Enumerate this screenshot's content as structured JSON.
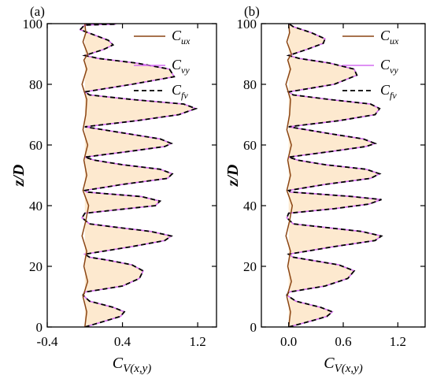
{
  "chart_data": [
    {
      "type": "line",
      "panel_label": "(a)",
      "xlabel": "C",
      "xlabel_sub": "V(x,y)",
      "ylabel": "z/D",
      "xlim": [
        -0.4,
        1.4
      ],
      "ylim": [
        0,
        100
      ],
      "xticks": [
        -0.4,
        0.4,
        1.2
      ],
      "xtick_labels": [
        "-0.4",
        "0.4",
        "1.2"
      ],
      "yticks": [
        0,
        20,
        40,
        60,
        80,
        100
      ],
      "ytick_labels": [
        "0",
        "20",
        "40",
        "60",
        "80",
        "100"
      ],
      "legend": [
        {
          "symbol": "C",
          "sub": "ux",
          "color": "#8b4513",
          "style": "solid"
        },
        {
          "symbol": "C",
          "sub": "vy",
          "color": "#d36df0",
          "style": "solid"
        },
        {
          "symbol": "C",
          "sub": "fv",
          "color": "#000000",
          "style": "dashed"
        }
      ],
      "legend_position": "top-right",
      "fill_color": "#fde9cf",
      "series": [
        {
          "key": "vy",
          "color": "#d36df0",
          "x": [
            0.0,
            0.22,
            0.38,
            0.42,
            0.3,
            0.05,
            -0.02,
            0.0,
            0.4,
            0.58,
            0.62,
            0.5,
            0.25,
            0.05,
            0.0,
            0.5,
            0.85,
            0.92,
            0.7,
            0.3,
            0.05,
            -0.03,
            0.0,
            0.45,
            0.75,
            0.8,
            0.6,
            0.2,
            0.02,
            0.0,
            0.4,
            0.88,
            0.93,
            0.8,
            0.4,
            0.1,
            0.0,
            0.5,
            0.85,
            0.92,
            0.8,
            0.5,
            0.2,
            0.0,
            0.55,
            1.0,
            1.18,
            1.05,
            0.5,
            0.05,
            0.0,
            0.5,
            0.95,
            0.9,
            0.55,
            0.15,
            0.0,
            0.2,
            0.3,
            0.25,
            0.08,
            -0.05,
            -0.02,
            0.0,
            0.18,
            0.32,
            0.33,
            0.25,
            0.1,
            0.0
          ],
          "y": [
            0.0,
            2.0,
            3.5,
            5.0,
            6.5,
            8.5,
            10.5,
            11.5,
            13.5,
            16.0,
            18.5,
            20.5,
            22.0,
            23.0,
            24.0,
            26.5,
            28.5,
            30.0,
            31.5,
            33.0,
            34.0,
            36.0,
            37.5,
            39.0,
            40.0,
            41.5,
            43.0,
            44.0,
            44.5,
            45.0,
            47.0,
            49.0,
            50.5,
            52.0,
            53.5,
            55.0,
            56.0,
            58.0,
            59.5,
            60.5,
            62.0,
            63.5,
            65.0,
            66.0,
            68.0,
            70.0,
            72.0,
            73.5,
            75.0,
            76.5,
            77.5,
            80.0,
            82.5,
            85.0,
            87.0,
            88.5,
            89.5,
            91.5,
            93.0,
            94.5,
            96.5,
            98.0,
            99.0,
            99.5,
            99.7,
            99.8,
            99.9,
            99.95,
            99.98,
            100.0
          ]
        },
        {
          "key": "fv",
          "color": "#000000",
          "x": [
            0.0,
            0.22,
            0.38,
            0.42,
            0.3,
            0.05,
            -0.02,
            0.0,
            0.4,
            0.58,
            0.62,
            0.5,
            0.25,
            0.05,
            0.0,
            0.5,
            0.85,
            0.92,
            0.7,
            0.3,
            0.05,
            -0.03,
            0.0,
            0.45,
            0.75,
            0.8,
            0.6,
            0.2,
            0.02,
            0.0,
            0.4,
            0.88,
            0.93,
            0.8,
            0.4,
            0.1,
            0.0,
            0.5,
            0.85,
            0.92,
            0.8,
            0.5,
            0.2,
            0.0,
            0.55,
            1.0,
            1.18,
            1.05,
            0.5,
            0.05,
            0.0,
            0.5,
            0.95,
            0.9,
            0.55,
            0.15,
            0.0,
            0.2,
            0.3,
            0.25,
            0.08,
            -0.05,
            -0.02,
            0.0,
            0.18,
            0.32,
            0.33,
            0.25,
            0.1,
            0.0
          ],
          "y": [
            0.0,
            2.0,
            3.5,
            5.0,
            6.5,
            8.5,
            10.5,
            11.5,
            13.5,
            16.0,
            18.5,
            20.5,
            22.0,
            23.0,
            24.0,
            26.5,
            28.5,
            30.0,
            31.5,
            33.0,
            34.0,
            36.0,
            37.5,
            39.0,
            40.0,
            41.5,
            43.0,
            44.0,
            44.5,
            45.0,
            47.0,
            49.0,
            50.5,
            52.0,
            53.5,
            55.0,
            56.0,
            58.0,
            59.5,
            60.5,
            62.0,
            63.5,
            65.0,
            66.0,
            68.0,
            70.0,
            72.0,
            73.5,
            75.0,
            76.5,
            77.5,
            80.0,
            82.5,
            85.0,
            87.0,
            88.5,
            89.5,
            91.5,
            93.0,
            94.5,
            96.5,
            98.0,
            99.0,
            99.5,
            99.7,
            99.8,
            99.9,
            99.95,
            99.98,
            100.0
          ]
        },
        {
          "key": "ux",
          "color": "#8b4513",
          "x": [
            0.0,
            0.02,
            -0.02,
            0.03,
            -0.01,
            0.02,
            -0.03,
            0.01,
            0.04,
            -0.02,
            0.02,
            -0.01,
            0.03,
            -0.02,
            0.01,
            0.02,
            -0.03,
            0.02,
            -0.01,
            0.03,
            -0.02,
            0.01,
            0.0
          ],
          "y": [
            0,
            5,
            10,
            15,
            20,
            25,
            30,
            35,
            40,
            45,
            50,
            55,
            60,
            65,
            70,
            75,
            80,
            85,
            88,
            90,
            94,
            97,
            100
          ]
        }
      ]
    },
    {
      "type": "line",
      "panel_label": "(b)",
      "xlabel": "C",
      "xlabel_sub": "V(x,y)",
      "ylabel": "z/D",
      "xlim": [
        -0.3,
        1.5
      ],
      "ylim": [
        0,
        100
      ],
      "xticks": [
        0.0,
        0.6,
        1.2
      ],
      "xtick_labels": [
        "0.0",
        "0.6",
        "1.2"
      ],
      "yticks": [
        0,
        20,
        40,
        60,
        80,
        100
      ],
      "ytick_labels": [
        "0",
        "20",
        "40",
        "60",
        "80",
        "100"
      ],
      "legend": [
        {
          "symbol": "C",
          "sub": "ux",
          "color": "#8b4513",
          "style": "solid"
        },
        {
          "symbol": "C",
          "sub": "vy",
          "color": "#d36df0",
          "style": "solid"
        },
        {
          "symbol": "C",
          "sub": "fv",
          "color": "#000000",
          "style": "dashed"
        }
      ],
      "legend_position": "top-right",
      "fill_color": "#fde9cf",
      "series": [
        {
          "key": "vy",
          "color": "#d36df0",
          "x": [
            0.0,
            0.25,
            0.42,
            0.48,
            0.35,
            0.08,
            -0.02,
            0.0,
            0.4,
            0.65,
            0.72,
            0.55,
            0.25,
            0.05,
            0.0,
            0.5,
            0.95,
            1.02,
            0.8,
            0.35,
            0.05,
            -0.02,
            0.0,
            0.5,
            0.88,
            1.02,
            0.7,
            0.25,
            0.02,
            0.0,
            0.4,
            0.9,
            1.0,
            0.85,
            0.4,
            0.1,
            0.0,
            0.5,
            0.85,
            0.95,
            0.82,
            0.5,
            0.2,
            0.0,
            0.55,
            0.95,
            1.0,
            0.9,
            0.45,
            0.05,
            0.0,
            0.5,
            0.75,
            0.72,
            0.45,
            0.12,
            0.0,
            0.2,
            0.38,
            0.4,
            0.25,
            0.05,
            0.0
          ],
          "y": [
            0.0,
            2.0,
            3.5,
            5.0,
            6.5,
            8.5,
            10.5,
            11.5,
            13.5,
            16.0,
            18.5,
            20.5,
            22.0,
            23.0,
            24.0,
            26.5,
            28.5,
            30.0,
            31.5,
            33.0,
            34.0,
            36.0,
            37.5,
            39.0,
            40.5,
            42.0,
            43.0,
            44.0,
            44.5,
            45.0,
            47.0,
            49.0,
            50.5,
            52.0,
            53.5,
            55.0,
            56.0,
            58.0,
            59.5,
            60.5,
            62.0,
            63.5,
            65.0,
            66.0,
            68.0,
            70.0,
            72.0,
            73.5,
            75.0,
            76.5,
            77.5,
            80.0,
            83.0,
            85.0,
            87.0,
            88.5,
            89.5,
            91.5,
            93.5,
            95.0,
            97.0,
            99.0,
            100.0
          ]
        },
        {
          "key": "fv",
          "color": "#000000",
          "x": [
            0.0,
            0.25,
            0.42,
            0.48,
            0.35,
            0.08,
            -0.02,
            0.0,
            0.4,
            0.65,
            0.72,
            0.55,
            0.25,
            0.05,
            0.0,
            0.5,
            0.95,
            1.02,
            0.8,
            0.35,
            0.05,
            -0.02,
            0.0,
            0.5,
            0.88,
            1.02,
            0.7,
            0.25,
            0.02,
            0.0,
            0.4,
            0.9,
            1.0,
            0.85,
            0.4,
            0.1,
            0.0,
            0.5,
            0.85,
            0.95,
            0.82,
            0.5,
            0.2,
            0.0,
            0.55,
            0.95,
            1.0,
            0.9,
            0.45,
            0.05,
            0.0,
            0.5,
            0.75,
            0.72,
            0.45,
            0.12,
            0.0,
            0.2,
            0.38,
            0.4,
            0.25,
            0.05,
            0.0
          ],
          "y": [
            0.0,
            2.0,
            3.5,
            5.0,
            6.5,
            8.5,
            10.5,
            11.5,
            13.5,
            16.0,
            18.5,
            20.5,
            22.0,
            23.0,
            24.0,
            26.5,
            28.5,
            30.0,
            31.5,
            33.0,
            34.0,
            36.0,
            37.5,
            39.0,
            40.5,
            42.0,
            43.0,
            44.0,
            44.5,
            45.0,
            47.0,
            49.0,
            50.5,
            52.0,
            53.5,
            55.0,
            56.0,
            58.0,
            59.5,
            60.5,
            62.0,
            63.5,
            65.0,
            66.0,
            68.0,
            70.0,
            72.0,
            73.5,
            75.0,
            76.5,
            77.5,
            80.0,
            83.0,
            85.0,
            87.0,
            88.5,
            89.5,
            91.5,
            93.5,
            95.0,
            97.0,
            99.0,
            100.0
          ]
        },
        {
          "key": "ux",
          "color": "#8b4513",
          "x": [
            0.0,
            0.02,
            -0.02,
            0.03,
            -0.01,
            0.02,
            -0.03,
            0.01,
            0.04,
            -0.02,
            0.02,
            -0.01,
            0.03,
            -0.02,
            0.01,
            0.02,
            -0.03,
            0.02,
            -0.01,
            0.03,
            -0.02,
            0.01,
            0.0
          ],
          "y": [
            0,
            5,
            10,
            15,
            20,
            25,
            30,
            35,
            40,
            45,
            50,
            55,
            60,
            65,
            70,
            75,
            80,
            85,
            88,
            90,
            94,
            97,
            100
          ]
        }
      ]
    }
  ]
}
